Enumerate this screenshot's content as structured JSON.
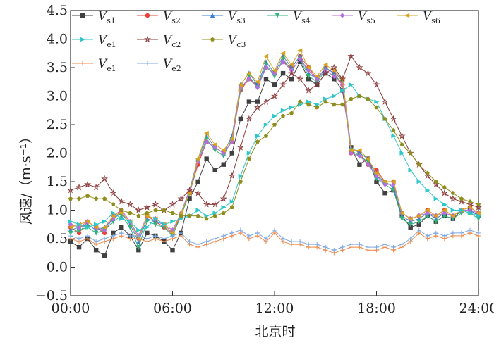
{
  "chart_data": {
    "type": "line",
    "title": "",
    "xlabel": "北京时",
    "ylabel": "风速/（m·s⁻¹）",
    "xlim": [
      0,
      24
    ],
    "ylim": [
      -0.5,
      4.5
    ],
    "x_ticks": [
      "00:00",
      "06:00",
      "12:00",
      "18:00",
      "24:00"
    ],
    "y_ticks": [
      "-0.5",
      "0.0",
      "0.5",
      "1.0",
      "1.5",
      "2.0",
      "2.5",
      "3.0",
      "3.5",
      "4.0",
      "4.5"
    ],
    "legend_position": "top-left",
    "x_unit": "hours",
    "series": [
      {
        "name_main": "V",
        "name_sub": "s1",
        "color": "#404040",
        "marker": "square",
        "x": [
          0,
          0.5,
          1,
          1.5,
          2,
          2.5,
          3,
          3.5,
          4,
          4.5,
          5,
          5.5,
          6,
          6.5,
          7,
          7.5,
          8,
          8.5,
          9,
          9.5,
          10,
          10.5,
          11,
          11.5,
          12,
          12.5,
          13,
          13.5,
          14,
          14.5,
          15,
          15.5,
          16,
          16.5,
          17,
          17.5,
          18,
          18.5,
          19,
          19.5,
          20,
          20.5,
          21,
          21.5,
          22,
          22.5,
          23,
          23.5,
          24
        ],
        "y": [
          0.45,
          0.35,
          0.5,
          0.3,
          0.2,
          0.6,
          0.7,
          0.55,
          0.3,
          0.6,
          0.55,
          0.45,
          0.3,
          0.6,
          1.2,
          1.5,
          1.9,
          1.7,
          1.8,
          2.0,
          2.6,
          2.9,
          2.9,
          3.3,
          3.2,
          3.4,
          3.3,
          3.6,
          3.3,
          3.2,
          3.4,
          3.3,
          3.1,
          2.1,
          1.8,
          1.9,
          1.5,
          1.3,
          1.35,
          0.9,
          0.7,
          0.75,
          0.9,
          0.8,
          0.9,
          0.85,
          1.0,
          1.0,
          0.9
        ]
      },
      {
        "name_main": "V",
        "name_sub": "s2",
        "color": "#e8433a",
        "marker": "circle",
        "x": [
          0,
          0.5,
          1,
          1.5,
          2,
          2.5,
          3,
          3.5,
          4,
          4.5,
          5,
          5.5,
          6,
          6.5,
          7,
          7.5,
          8,
          8.5,
          9,
          9.5,
          10,
          10.5,
          11,
          11.5,
          12,
          12.5,
          13,
          13.5,
          14,
          14.5,
          15,
          15.5,
          16,
          16.5,
          17,
          17.5,
          18,
          18.5,
          19,
          19.5,
          20,
          20.5,
          21,
          21.5,
          22,
          22.5,
          23,
          23.5,
          24
        ],
        "y": [
          0.7,
          0.6,
          0.8,
          0.7,
          0.6,
          0.9,
          1.0,
          0.8,
          0.5,
          0.9,
          0.8,
          0.7,
          0.6,
          0.9,
          1.3,
          1.8,
          2.2,
          2.1,
          2.0,
          2.2,
          3.1,
          3.3,
          3.2,
          3.5,
          3.4,
          3.6,
          3.5,
          3.7,
          3.5,
          3.3,
          3.5,
          3.4,
          3.2,
          2.0,
          2.0,
          1.8,
          1.7,
          1.5,
          1.5,
          0.95,
          0.85,
          0.9,
          1.0,
          0.9,
          1.0,
          0.9,
          1.0,
          1.05,
          0.95
        ]
      },
      {
        "name_main": "V",
        "name_sub": "s3",
        "color": "#3a7fd6",
        "marker": "triangle-up",
        "x": [
          0,
          0.5,
          1,
          1.5,
          2,
          2.5,
          3,
          3.5,
          4,
          4.5,
          5,
          5.5,
          6,
          6.5,
          7,
          7.5,
          8,
          8.5,
          9,
          9.5,
          10,
          10.5,
          11,
          11.5,
          12,
          12.5,
          13,
          13.5,
          14,
          14.5,
          15,
          15.5,
          16,
          16.5,
          17,
          17.5,
          18,
          18.5,
          19,
          19.5,
          20,
          20.5,
          21,
          21.5,
          22,
          22.5,
          23,
          23.5,
          24
        ],
        "y": [
          0.65,
          0.7,
          0.75,
          0.65,
          0.7,
          0.85,
          0.95,
          0.75,
          0.45,
          0.85,
          0.8,
          0.75,
          0.6,
          0.95,
          1.35,
          1.9,
          2.3,
          2.1,
          2.0,
          2.3,
          3.2,
          3.4,
          3.2,
          3.6,
          3.4,
          3.7,
          3.5,
          3.7,
          3.4,
          3.3,
          3.5,
          3.4,
          3.3,
          2.1,
          2.0,
          1.9,
          1.6,
          1.5,
          1.4,
          0.9,
          0.8,
          0.85,
          0.95,
          0.85,
          0.95,
          0.9,
          1.0,
          1.0,
          0.9
        ]
      },
      {
        "name_main": "V",
        "name_sub": "s4",
        "color": "#2fb37a",
        "marker": "triangle-down",
        "x": [
          0,
          0.5,
          1,
          1.5,
          2,
          2.5,
          3,
          3.5,
          4,
          4.5,
          5,
          5.5,
          6,
          6.5,
          7,
          7.5,
          8,
          8.5,
          9,
          9.5,
          10,
          10.5,
          11,
          11.5,
          12,
          12.5,
          13,
          13.5,
          14,
          14.5,
          15,
          15.5,
          16,
          16.5,
          17,
          17.5,
          18,
          18.5,
          19,
          19.5,
          20,
          20.5,
          21,
          21.5,
          22,
          22.5,
          23,
          23.5,
          24
        ],
        "y": [
          0.6,
          0.65,
          0.7,
          0.6,
          0.65,
          0.8,
          0.9,
          0.7,
          0.35,
          0.8,
          0.75,
          0.7,
          0.55,
          0.9,
          1.3,
          1.85,
          2.25,
          2.05,
          1.95,
          2.25,
          3.1,
          3.35,
          3.15,
          3.55,
          3.35,
          3.65,
          3.45,
          3.65,
          3.35,
          3.25,
          3.45,
          3.35,
          3.25,
          2.05,
          1.95,
          1.85,
          1.55,
          1.45,
          1.35,
          0.85,
          0.75,
          0.8,
          0.9,
          0.8,
          0.9,
          0.85,
          0.95,
          0.95,
          0.85
        ]
      },
      {
        "name_main": "V",
        "name_sub": "s5",
        "color": "#b46ee0",
        "marker": "diamond",
        "x": [
          0,
          0.5,
          1,
          1.5,
          2,
          2.5,
          3,
          3.5,
          4,
          4.5,
          5,
          5.5,
          6,
          6.5,
          7,
          7.5,
          8,
          8.5,
          9,
          9.5,
          10,
          10.5,
          11,
          11.5,
          12,
          12.5,
          13,
          13.5,
          14,
          14.5,
          15,
          15.5,
          16,
          16.5,
          17,
          17.5,
          18,
          18.5,
          19,
          19.5,
          20,
          20.5,
          21,
          21.5,
          22,
          22.5,
          23,
          23.5,
          24
        ],
        "y": [
          0.75,
          0.7,
          0.8,
          0.7,
          0.65,
          0.85,
          1.0,
          0.8,
          0.55,
          0.9,
          0.85,
          0.75,
          0.65,
          0.95,
          1.35,
          1.85,
          2.2,
          2.1,
          2.0,
          2.2,
          3.15,
          3.3,
          3.15,
          3.5,
          3.4,
          3.6,
          3.45,
          3.65,
          3.45,
          3.3,
          3.45,
          3.35,
          3.2,
          2.0,
          1.95,
          1.8,
          1.6,
          1.45,
          1.45,
          0.95,
          0.85,
          0.9,
          0.95,
          0.9,
          0.95,
          0.9,
          1.0,
          1.0,
          0.95
        ]
      },
      {
        "name_main": "V",
        "name_sub": "s6",
        "color": "#d9a21c",
        "marker": "triangle-left",
        "x": [
          0,
          0.5,
          1,
          1.5,
          2,
          2.5,
          3,
          3.5,
          4,
          4.5,
          5,
          5.5,
          6,
          6.5,
          7,
          7.5,
          8,
          8.5,
          9,
          9.5,
          10,
          10.5,
          11,
          11.5,
          12,
          12.5,
          13,
          13.5,
          14,
          14.5,
          15,
          15.5,
          16,
          16.5,
          17,
          17.5,
          18,
          18.5,
          19,
          19.5,
          20,
          20.5,
          21,
          21.5,
          22,
          22.5,
          23,
          23.5,
          24
        ],
        "y": [
          0.7,
          0.75,
          0.8,
          0.7,
          0.7,
          0.9,
          0.95,
          0.8,
          0.5,
          0.9,
          0.85,
          0.75,
          0.6,
          0.95,
          1.3,
          1.9,
          2.35,
          2.15,
          2.05,
          2.25,
          3.2,
          3.4,
          3.25,
          3.7,
          3.45,
          3.75,
          3.55,
          3.8,
          3.5,
          3.35,
          3.55,
          3.45,
          3.3,
          2.05,
          2.05,
          1.9,
          1.65,
          1.5,
          1.5,
          0.95,
          0.85,
          0.9,
          1.0,
          0.9,
          1.0,
          0.9,
          1.0,
          1.05,
          0.95
        ]
      },
      {
        "name_main": "V",
        "name_sub": "e1",
        "color": "#2ec7c9",
        "marker": "triangle-right",
        "x": [
          0,
          0.5,
          1,
          1.5,
          2,
          2.5,
          3,
          3.5,
          4,
          4.5,
          5,
          5.5,
          6,
          6.5,
          7,
          7.5,
          8,
          8.5,
          9,
          9.5,
          10,
          10.5,
          11,
          11.5,
          12,
          12.5,
          13,
          13.5,
          14,
          14.5,
          15,
          15.5,
          16,
          16.5,
          17,
          17.5,
          18,
          18.5,
          19,
          19.5,
          20,
          20.5,
          21,
          21.5,
          22,
          22.5,
          23,
          23.5,
          24
        ],
        "y": [
          0.8,
          0.75,
          0.7,
          0.75,
          0.8,
          0.95,
          0.85,
          0.8,
          0.65,
          0.7,
          0.85,
          0.75,
          0.8,
          0.85,
          0.9,
          1.0,
          0.9,
          0.95,
          1.05,
          1.15,
          1.6,
          2.0,
          2.3,
          2.5,
          2.65,
          2.75,
          2.8,
          2.85,
          2.9,
          2.85,
          2.95,
          3.0,
          3.1,
          3.2,
          3.0,
          2.95,
          2.9,
          2.6,
          2.3,
          2.0,
          1.7,
          1.5,
          1.35,
          1.2,
          1.1,
          1.0,
          1.0,
          0.95,
          0.9
        ]
      },
      {
        "name_main": "V",
        "name_sub": "c2",
        "color": "#8b3a3a",
        "marker": "star",
        "x": [
          0,
          0.5,
          1,
          1.5,
          2,
          2.5,
          3,
          3.5,
          4,
          4.5,
          5,
          5.5,
          6,
          6.5,
          7,
          7.5,
          8,
          8.5,
          9,
          9.5,
          10,
          10.5,
          11,
          11.5,
          12,
          12.5,
          13,
          13.5,
          14,
          14.5,
          15,
          15.5,
          16,
          16.5,
          17,
          17.5,
          18,
          18.5,
          19,
          19.5,
          20,
          20.5,
          21,
          21.5,
          22,
          22.5,
          23,
          23.5,
          24
        ],
        "y": [
          1.35,
          1.4,
          1.45,
          1.4,
          1.55,
          1.3,
          1.15,
          1.1,
          1.0,
          1.05,
          1.1,
          1.0,
          1.1,
          1.2,
          1.35,
          1.3,
          1.1,
          1.1,
          1.2,
          1.6,
          2.1,
          2.6,
          2.8,
          2.9,
          3.0,
          3.2,
          3.4,
          3.3,
          3.1,
          3.2,
          3.4,
          3.5,
          3.3,
          3.7,
          3.5,
          3.4,
          3.2,
          2.9,
          2.6,
          2.3,
          2.0,
          1.8,
          1.6,
          1.45,
          1.3,
          1.2,
          1.15,
          1.1,
          1.05
        ]
      },
      {
        "name_main": "V",
        "name_sub": "c3",
        "color": "#8f8d1c",
        "marker": "pentagon",
        "x": [
          0,
          0.5,
          1,
          1.5,
          2,
          2.5,
          3,
          3.5,
          4,
          4.5,
          5,
          5.5,
          6,
          6.5,
          7,
          7.5,
          8,
          8.5,
          9,
          9.5,
          10,
          10.5,
          11,
          11.5,
          12,
          12.5,
          13,
          13.5,
          14,
          14.5,
          15,
          15.5,
          16,
          16.5,
          17,
          17.5,
          18,
          18.5,
          19,
          19.5,
          20,
          20.5,
          21,
          21.5,
          22,
          22.5,
          23,
          23.5,
          24
        ],
        "y": [
          1.2,
          1.2,
          1.25,
          1.2,
          1.2,
          1.1,
          1.0,
          0.95,
          0.9,
          0.95,
          1.0,
          1.0,
          0.95,
          0.9,
          0.9,
          0.9,
          0.85,
          0.9,
          0.95,
          1.05,
          1.5,
          1.9,
          2.2,
          2.3,
          2.5,
          2.65,
          2.7,
          2.9,
          2.85,
          2.8,
          2.9,
          2.85,
          2.85,
          2.95,
          3.0,
          2.95,
          2.8,
          2.6,
          2.4,
          2.15,
          2.0,
          1.8,
          1.65,
          1.5,
          1.4,
          1.3,
          1.2,
          1.15,
          1.1
        ]
      },
      {
        "name_main": "V",
        "name_sub": "e1",
        "color": "#f08a48",
        "marker": "plus",
        "x": [
          0,
          0.5,
          1,
          1.5,
          2,
          2.5,
          3,
          3.5,
          4,
          4.5,
          5,
          5.5,
          6,
          6.5,
          7,
          7.5,
          8,
          8.5,
          9,
          9.5,
          10,
          10.5,
          11,
          11.5,
          12,
          12.5,
          13,
          13.5,
          14,
          14.5,
          15,
          15.5,
          16,
          16.5,
          17,
          17.5,
          18,
          18.5,
          19,
          19.5,
          20,
          20.5,
          21,
          21.5,
          22,
          22.5,
          23,
          23.5,
          24
        ],
        "y": [
          0.5,
          0.45,
          0.5,
          0.4,
          0.45,
          0.5,
          0.55,
          0.5,
          0.5,
          0.45,
          0.5,
          0.45,
          0.5,
          0.55,
          0.4,
          0.35,
          0.4,
          0.45,
          0.5,
          0.55,
          0.6,
          0.5,
          0.55,
          0.45,
          0.6,
          0.45,
          0.4,
          0.4,
          0.35,
          0.35,
          0.3,
          0.25,
          0.3,
          0.35,
          0.35,
          0.3,
          0.3,
          0.35,
          0.3,
          0.35,
          0.45,
          0.6,
          0.5,
          0.55,
          0.5,
          0.55,
          0.55,
          0.6,
          0.55
        ]
      },
      {
        "name_main": "V",
        "name_sub": "e2",
        "color": "#7fa8e0",
        "marker": "plus",
        "x": [
          0,
          0.5,
          1,
          1.5,
          2,
          2.5,
          3,
          3.5,
          4,
          4.5,
          5,
          5.5,
          6,
          6.5,
          7,
          7.5,
          8,
          8.5,
          9,
          9.5,
          10,
          10.5,
          11,
          11.5,
          12,
          12.5,
          13,
          13.5,
          14,
          14.5,
          15,
          15.5,
          16,
          16.5,
          17,
          17.5,
          18,
          18.5,
          19,
          19.5,
          20,
          20.5,
          21,
          21.5,
          22,
          22.5,
          23,
          23.5,
          24
        ],
        "y": [
          0.55,
          0.5,
          0.55,
          0.45,
          0.5,
          0.55,
          0.6,
          0.55,
          0.55,
          0.5,
          0.55,
          0.5,
          0.55,
          0.6,
          0.45,
          0.4,
          0.45,
          0.5,
          0.55,
          0.6,
          0.65,
          0.55,
          0.6,
          0.5,
          0.65,
          0.5,
          0.45,
          0.45,
          0.4,
          0.4,
          0.35,
          0.3,
          0.35,
          0.4,
          0.4,
          0.35,
          0.35,
          0.4,
          0.35,
          0.4,
          0.5,
          0.65,
          0.55,
          0.6,
          0.55,
          0.6,
          0.6,
          0.65,
          0.6
        ]
      }
    ]
  }
}
